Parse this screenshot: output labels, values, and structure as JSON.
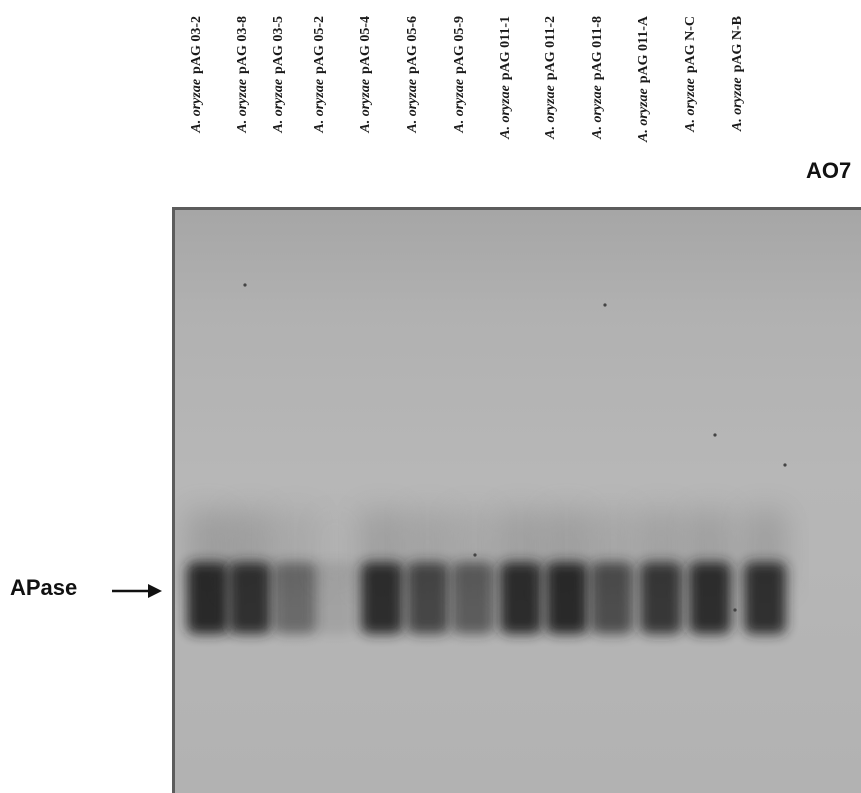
{
  "lane_labels": [
    {
      "species": "A. oryzae",
      "strain": "pAG 03-2"
    },
    {
      "species": "A. oryzae",
      "strain": "pAG 03-8"
    },
    {
      "species": "A. oryzae",
      "strain": "pAG 03-5"
    },
    {
      "species": "A. oryzae",
      "strain": "pAG 05-2"
    },
    {
      "species": "A. oryzae",
      "strain": "pAG 05-4"
    },
    {
      "species": "A. oryzae",
      "strain": "pAG 05-6"
    },
    {
      "species": "A. oryzae",
      "strain": "pAG 05-9"
    },
    {
      "species": "A. oryzae",
      "strain": "pAG 011-1"
    },
    {
      "species": "A. oryzae",
      "strain": "pAG 011-2"
    },
    {
      "species": "A. oryzae",
      "strain": "pAG 011-8"
    },
    {
      "species": "A. oryzae",
      "strain": "pAG 011-A"
    },
    {
      "species": "A. oryzae",
      "strain": "pAG N-C"
    },
    {
      "species": "A. oryzae",
      "strain": "pAG N-B"
    }
  ],
  "control_label": "AO7",
  "band_marker": "APase",
  "band_intensity": [
    0.95,
    0.9,
    0.5,
    0.12,
    0.92,
    0.75,
    0.6,
    0.93,
    0.95,
    0.7,
    0.85,
    0.92,
    0.9,
    0.0
  ],
  "colors": {
    "gel_background": "#b4b4b4",
    "band": "#222222",
    "frame": "#5c5c5c",
    "text": "#111111"
  }
}
